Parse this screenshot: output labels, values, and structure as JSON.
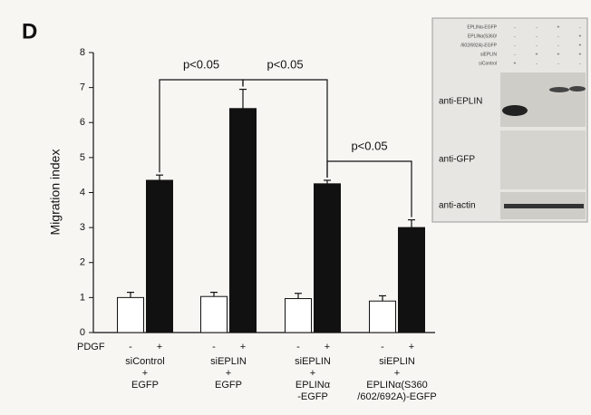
{
  "chart_data": {
    "type": "bar",
    "panel_label": "D",
    "y_label": "Migration index",
    "x_row_label": "PDGF",
    "categories": [
      [
        "siControl",
        "+",
        "EGFP"
      ],
      [
        "siEPLIN",
        "+",
        "EGFP"
      ],
      [
        "siEPLIN",
        "+",
        "EPLINα",
        "-EGFP"
      ],
      [
        "siEPLIN",
        "+",
        "EPLINα(S360",
        "/602/692A)-EGFP"
      ]
    ],
    "series": [
      {
        "name": "-",
        "color": "#ffffff",
        "values": [
          1.0,
          1.03,
          0.97,
          0.9
        ],
        "errors": [
          0.15,
          0.12,
          0.15,
          0.15
        ]
      },
      {
        "name": "+",
        "color": "#111111",
        "values": [
          4.35,
          6.4,
          4.25,
          3.0
        ],
        "errors": [
          0.15,
          0.55,
          0.1,
          0.22
        ]
      }
    ],
    "ylim": [
      0,
      8
    ],
    "yticks": [
      0,
      1,
      2,
      3,
      4,
      5,
      6,
      7,
      8
    ],
    "annotations": [
      "p<0.05",
      "p<0.05",
      "p<0.05"
    ],
    "inset": {
      "header_rows": [
        {
          "label": "EPLINα-EGFP",
          "signs": [
            "-",
            "-",
            "+",
            "-"
          ]
        },
        {
          "label": "EPLINα(S360/",
          "signs": [
            "-",
            "-",
            "-",
            "+"
          ]
        },
        {
          "label": "/602/692A)-EGFP",
          "signs": [
            "-",
            "-",
            "-",
            "+"
          ]
        },
        {
          "label": "siEPLIN",
          "signs": [
            "-",
            "+",
            "+",
            "+"
          ]
        },
        {
          "label": "siControl",
          "signs": [
            "+",
            "-",
            "-",
            "-"
          ]
        }
      ],
      "blots": [
        "anti-EPLIN",
        "anti-GFP",
        "anti-actin"
      ]
    }
  }
}
